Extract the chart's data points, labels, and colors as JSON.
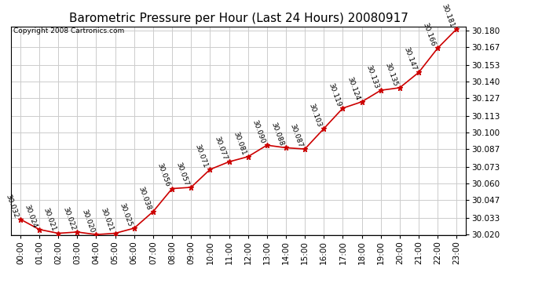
{
  "title": "Barometric Pressure per Hour (Last 24 Hours) 20080917",
  "copyright": "Copyright 2008 Cartronics.com",
  "hours": [
    "00:00",
    "01:00",
    "02:00",
    "03:00",
    "04:00",
    "05:00",
    "06:00",
    "07:00",
    "08:00",
    "09:00",
    "10:00",
    "11:00",
    "12:00",
    "13:00",
    "14:00",
    "15:00",
    "16:00",
    "17:00",
    "18:00",
    "19:00",
    "20:00",
    "21:00",
    "22:00",
    "23:00"
  ],
  "values": [
    30.032,
    30.024,
    30.021,
    30.022,
    30.02,
    30.021,
    30.025,
    30.038,
    30.056,
    30.057,
    30.071,
    30.077,
    30.081,
    30.09,
    30.088,
    30.087,
    30.103,
    30.119,
    30.124,
    30.133,
    30.135,
    30.147,
    30.166,
    30.181
  ],
  "line_color": "#cc0000",
  "marker_color": "#cc0000",
  "background_color": "#ffffff",
  "plot_bg_color": "#ffffff",
  "grid_color": "#cccccc",
  "ylim_min": 30.02,
  "ylim_max": 30.18,
  "ytick_values": [
    30.02,
    30.033,
    30.047,
    30.06,
    30.073,
    30.087,
    30.1,
    30.113,
    30.127,
    30.14,
    30.153,
    30.167,
    30.18
  ],
  "title_fontsize": 11,
  "copyright_fontsize": 6.5,
  "annotation_fontsize": 6.5,
  "tick_fontsize": 7.5
}
